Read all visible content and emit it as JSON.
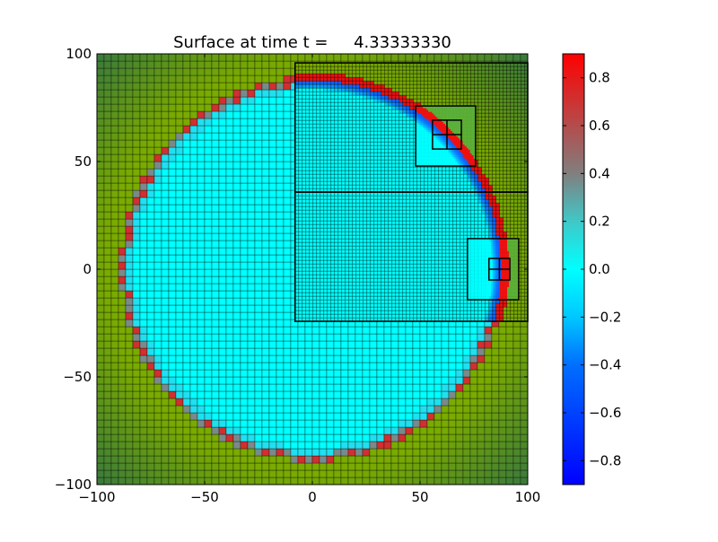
{
  "chart_data": {
    "type": "heatmap",
    "title": "Surface at time t =     4.33333330",
    "xlabel": "",
    "ylabel": "",
    "xlim": [
      -100,
      100
    ],
    "ylim": [
      -100,
      100
    ],
    "xticks": [
      -100,
      -50,
      0,
      50,
      100
    ],
    "xtick_labels": [
      "−100",
      "−50",
      "0",
      "50",
      "100"
    ],
    "yticks": [
      -100,
      -50,
      0,
      50,
      100
    ],
    "ytick_labels": [
      "−100",
      "−50",
      "0",
      "50",
      "100"
    ],
    "grid": false,
    "colorbar": {
      "clim": [
        -0.9,
        0.9
      ],
      "ticks": [
        0.8,
        0.6,
        0.4,
        0.2,
        0.0,
        -0.2,
        -0.4,
        -0.6,
        -0.8
      ],
      "tick_labels": [
        "0.8",
        "0.6",
        "0.4",
        "0.2",
        "0.0",
        "−0.2",
        "−0.4",
        "−0.6",
        "−0.8"
      ],
      "placement": "right"
    },
    "field": {
      "variable": "surface",
      "wave_front_radius": 88,
      "coarse_cell_size": 3.333
    },
    "amr_patches": [
      {
        "level": 2,
        "x": [
          -8,
          100
        ],
        "y": [
          35.8,
          95.8
        ]
      },
      {
        "level": 2,
        "x": [
          -8,
          100
        ],
        "y": [
          -24.2,
          35.8
        ]
      },
      {
        "level": 3,
        "x": [
          48,
          75.8
        ],
        "y": [
          47.9,
          75.8
        ]
      },
      {
        "level": 4,
        "x": [
          55.8,
          69.2
        ],
        "y": [
          55.8,
          69.2
        ]
      },
      {
        "level": 3,
        "x": [
          72,
          95.8
        ],
        "y": [
          -14.2,
          14.2
        ]
      },
      {
        "level": 4,
        "x": [
          82,
          91.7
        ],
        "y": [
          -5,
          5
        ]
      }
    ]
  },
  "colors": {
    "land_light": "#7aab00",
    "land_dark": "#3a7a3a",
    "water": "#00ffff",
    "crest": "#ee1111",
    "crest_coarse": "#d03030",
    "mid": "#7a8a8a",
    "trough": "#1060ff"
  }
}
